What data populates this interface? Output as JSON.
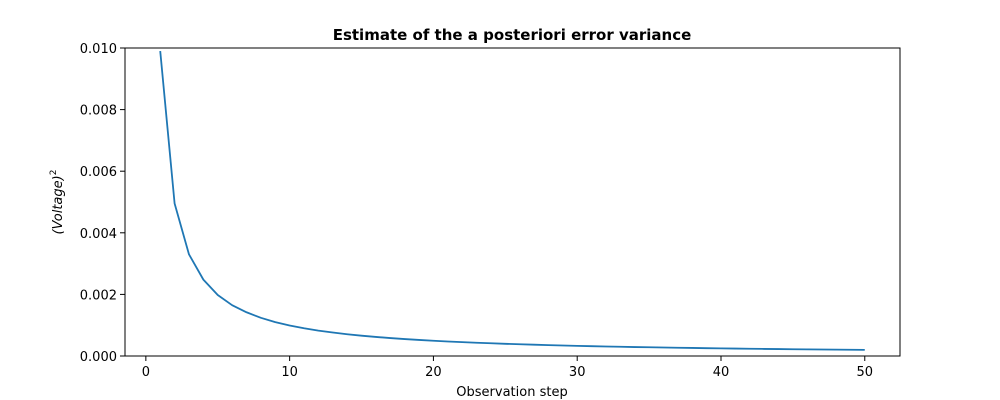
{
  "chart_data": {
    "type": "line",
    "title": "Estimate of the a posteriori error variance",
    "xlabel": "Observation step",
    "ylabel_main": "(Voltage)",
    "ylabel_sup": "2",
    "xlim": [
      -1.45,
      52.45
    ],
    "ylim": [
      0,
      0.01
    ],
    "xticks": [
      0,
      10,
      20,
      30,
      40,
      50
    ],
    "yticks": [
      0.0,
      0.002,
      0.004,
      0.006,
      0.008,
      0.01
    ],
    "ytick_labels": [
      "0.000",
      "0.002",
      "0.004",
      "0.006",
      "0.008",
      "0.010"
    ],
    "grid": false,
    "series": [
      {
        "color": "#1f77b4",
        "x": [
          1,
          2,
          3,
          4,
          5,
          6,
          7,
          8,
          9,
          10,
          11,
          12,
          13,
          14,
          15,
          16,
          17,
          18,
          19,
          20,
          21,
          22,
          23,
          24,
          25,
          26,
          27,
          28,
          29,
          30,
          31,
          32,
          33,
          34,
          35,
          36,
          37,
          38,
          39,
          40,
          41,
          42,
          43,
          44,
          45,
          46,
          47,
          48,
          49,
          50
        ],
        "y": [
          0.0099,
          0.00495,
          0.0033,
          0.00248,
          0.00198,
          0.00165,
          0.00142,
          0.00124,
          0.0011,
          0.00099,
          0.0009,
          0.000825,
          0.000762,
          0.000707,
          0.00066,
          0.000619,
          0.000582,
          0.00055,
          0.000521,
          0.000495,
          0.000471,
          0.00045,
          0.00043,
          0.000413,
          0.000396,
          0.000381,
          0.000367,
          0.000354,
          0.000342,
          0.00033,
          0.000319,
          0.000309,
          0.0003,
          0.000291,
          0.000283,
          0.000275,
          0.000268,
          0.000261,
          0.000254,
          0.000248,
          0.000241,
          0.000236,
          0.00023,
          0.000225,
          0.00022,
          0.000215,
          0.000211,
          0.000206,
          0.000202,
          0.000198
        ]
      }
    ]
  }
}
